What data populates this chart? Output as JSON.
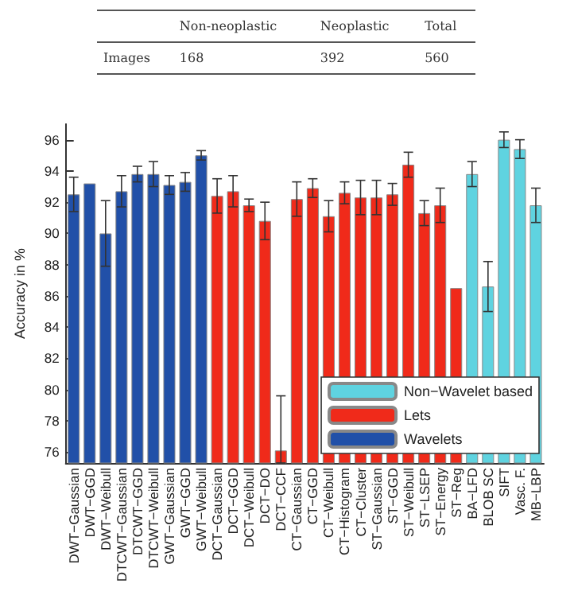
{
  "chart_data": {
    "type": "bar",
    "ylabel": "Accuracy in %",
    "annotations": [
      "Non-neoplastic",
      "Neoplastic",
      "Total",
      "Images",
      "168",
      "392",
      "560"
    ],
    "categories": [
      "DWT−Gaussian",
      "DWT−GGD",
      "DWT−Weibull",
      "DTCWT−Gaussian",
      "DTCWT−GGD",
      "DTCWT−Weibull",
      "GWT−Gaussian",
      "GWT−GGD",
      "GWT−Weibull",
      "DCT−Gaussian",
      "DCT−GGD",
      "DCT−Weibull",
      "DCT−DO",
      "DCT−CCF",
      "CT−Gaussian",
      "CT−GGD",
      "CT−Weibull",
      "CT−Histogram",
      "CT−Cluster",
      "ST−Gaussian",
      "ST−GGD",
      "ST−Weibull",
      "ST−LSEP",
      "ST−Energy",
      "ST−Reg",
      "BA−LFD",
      "BLOB SC",
      "SIFT",
      "Vasc. F.",
      "MB−LBP"
    ],
    "series": [
      {
        "name": "Non−Wavelet based",
        "color": "#5fd3e0",
        "values": [
          null,
          null,
          null,
          null,
          null,
          null,
          null,
          null,
          null,
          null,
          null,
          null,
          null,
          null,
          null,
          null,
          null,
          null,
          null,
          null,
          null,
          null,
          null,
          null,
          null,
          93.8,
          86.6,
          96.0,
          95.4,
          91.8
        ],
        "errors": [
          null,
          null,
          null,
          null,
          null,
          null,
          null,
          null,
          null,
          null,
          null,
          null,
          null,
          null,
          null,
          null,
          null,
          null,
          null,
          null,
          null,
          null,
          null,
          null,
          null,
          0.8,
          1.6,
          0.5,
          0.6,
          1.1
        ]
      },
      {
        "name": "Lets",
        "color": "#f02a1a",
        "values": [
          null,
          null,
          null,
          null,
          null,
          null,
          null,
          null,
          null,
          92.4,
          92.7,
          91.8,
          90.8,
          76.1,
          92.2,
          92.9,
          91.1,
          92.6,
          92.3,
          92.3,
          92.5,
          94.4,
          91.3,
          91.8,
          86.5,
          null,
          null,
          null,
          null,
          null
        ],
        "errors": [
          null,
          null,
          null,
          null,
          null,
          null,
          null,
          null,
          null,
          1.1,
          1.0,
          0.4,
          1.2,
          [
            75.3,
            79.6
          ],
          1.1,
          0.6,
          1.0,
          0.7,
          1.1,
          1.1,
          0.7,
          0.8,
          0.8,
          1.1,
          null,
          null,
          null,
          null,
          null,
          null
        ]
      },
      {
        "name": "Wavelets",
        "color": "#2150a8",
        "values": [
          92.5,
          93.2,
          90.0,
          92.7,
          93.8,
          93.8,
          93.1,
          93.3,
          95.0,
          null,
          null,
          null,
          null,
          null,
          null,
          null,
          null,
          null,
          null,
          null,
          null,
          null,
          null,
          null,
          null,
          null,
          null,
          null,
          null,
          null
        ],
        "errors": [
          1.1,
          null,
          2.1,
          1.0,
          0.5,
          0.8,
          0.6,
          0.6,
          0.3,
          null,
          null,
          null,
          null,
          null,
          null,
          null,
          null,
          null,
          null,
          null,
          null,
          null,
          null,
          null,
          null,
          null,
          null,
          null,
          null,
          null
        ]
      }
    ],
    "ylim": [
      75.3,
      97
    ],
    "yticks": [
      76,
      78,
      80,
      82,
      84,
      86,
      88,
      90,
      92,
      94,
      96
    ],
    "legend": "bottom right",
    "grid": false
  }
}
